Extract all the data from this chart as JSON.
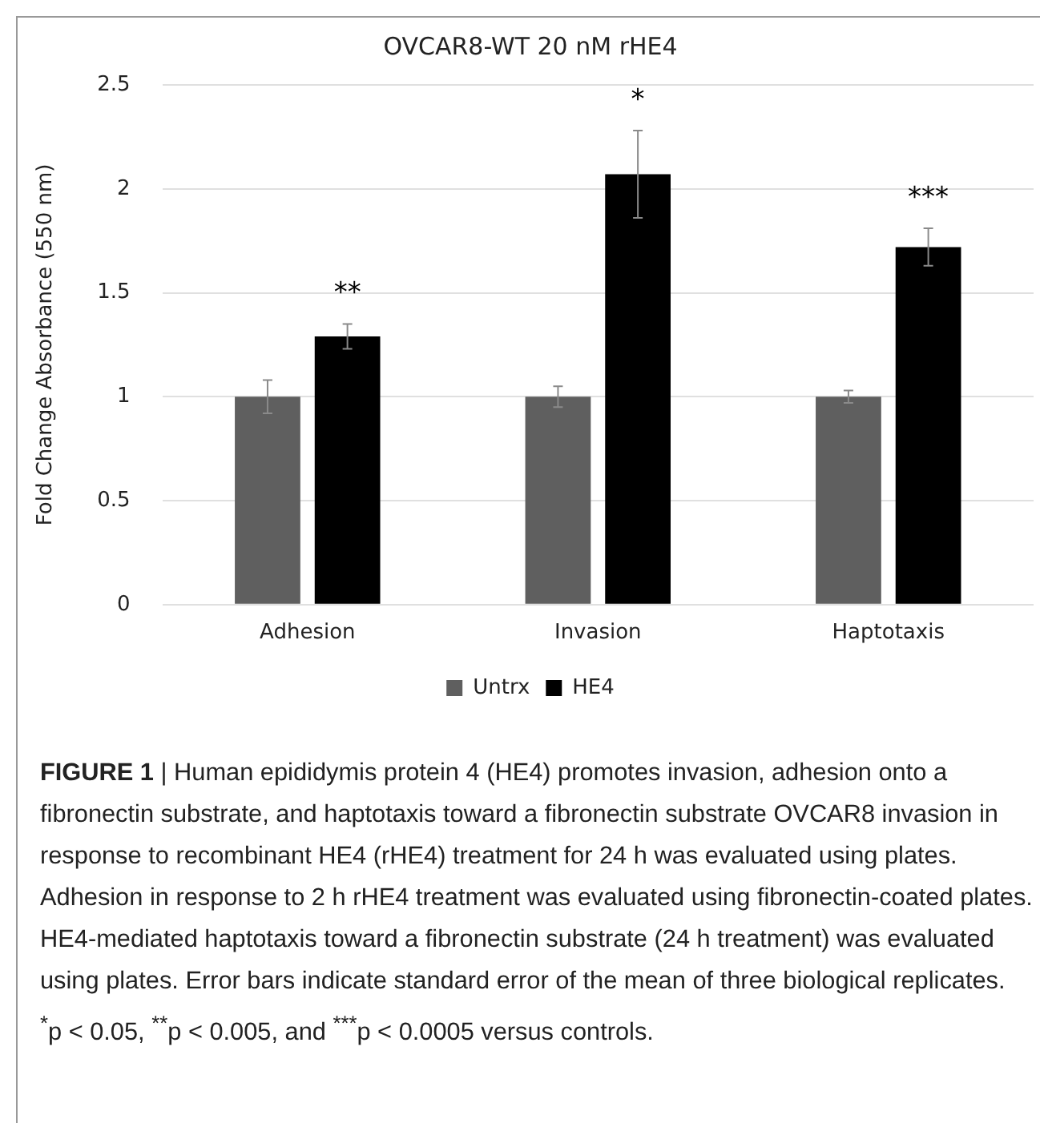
{
  "chart_data": {
    "type": "bar",
    "title": "OVCAR8-WT 20 nM rHE4",
    "ylabel": "Fold Change Absorbance (550 nm)",
    "categories": [
      "Adhesion",
      "Invasion",
      "Haptotaxis"
    ],
    "series": [
      {
        "name": "Untrx",
        "color": "#5f5f5f",
        "values": [
          1,
          1,
          1
        ],
        "errors": [
          0.08,
          0.05,
          0.03
        ]
      },
      {
        "name": "HE4",
        "color": "#000000",
        "values": [
          1.29,
          2.07,
          1.72
        ],
        "errors": [
          0.06,
          0.21,
          0.09
        ]
      }
    ],
    "ylim": [
      0,
      2.5
    ],
    "yticks": [
      0,
      0.5,
      1,
      1.5,
      2,
      2.5
    ],
    "grid": "y",
    "legend": "bottom",
    "annotations": [
      "**",
      "*",
      "***",
      "FIGURE 1",
      "| Human epididymis protein 4 (HE4) promotes invasion, adhesion onto a fibronectin substrate, and haptotaxis toward a fibronectin substrate OVCAR8 invasion in response to recombinant HE4 (rHE4) treatment for 24 h was evaluated using plates. Adhesion in response to 2 h rHE4 treatment was evaluated using fibronectin-coated plates. HE4-mediated haptotaxis toward a fibronectin substrate (24 h treatment) was evaluated using plates. Error bars indicate standard error of the mean of three biological replicates. $^{*}$p < 0.05, $^{**}$p < 0.005, and $^{***}$p < 0.0005 versus controls."
    ]
  }
}
